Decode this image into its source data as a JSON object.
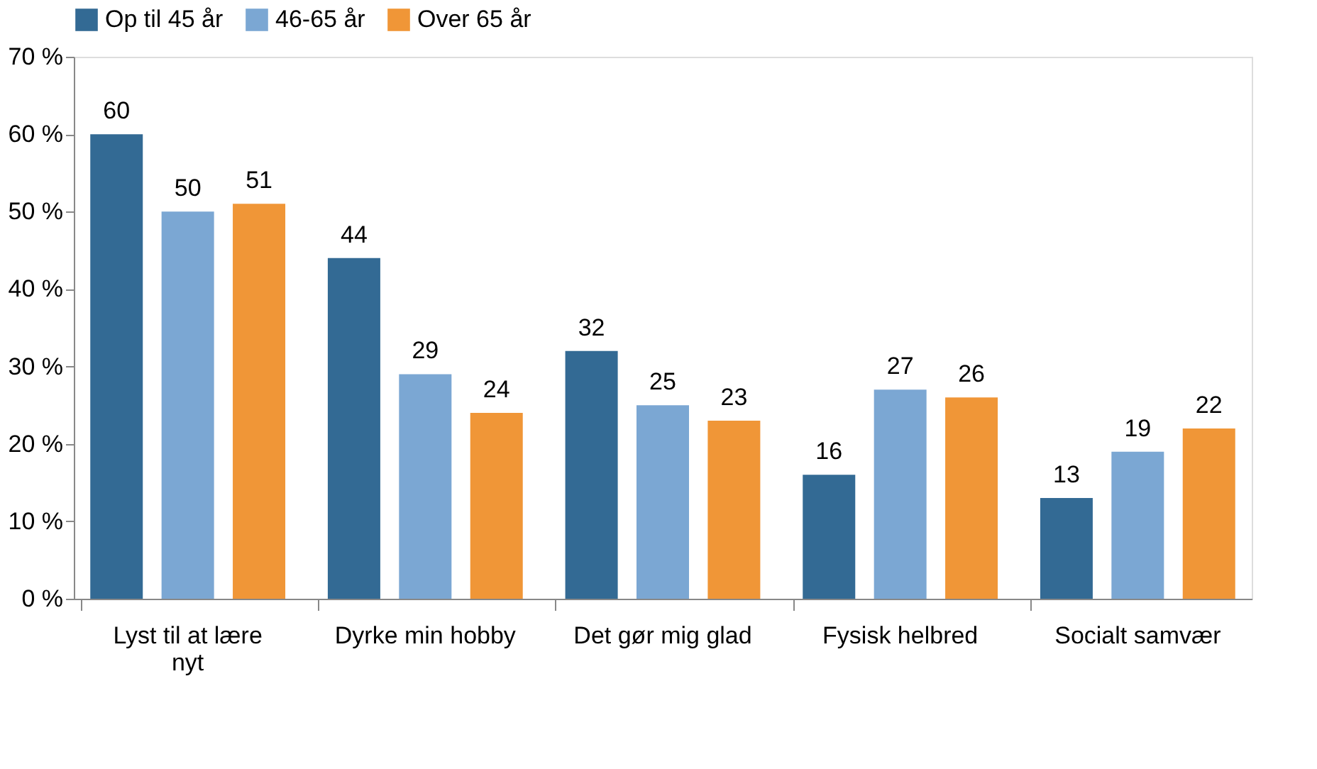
{
  "chart_data": {
    "type": "bar",
    "categories": [
      "Lyst til at lære nyt",
      "Dyrke min hobby",
      "Det gør mig glad",
      "Fysisk helbred",
      "Socialt samvær"
    ],
    "series": [
      {
        "name": "Op til 45 år",
        "color": "#336a94",
        "values": [
          60,
          44,
          32,
          16,
          13
        ]
      },
      {
        "name": "46-65 år",
        "color": "#7ba7d3",
        "values": [
          50,
          29,
          25,
          27,
          19
        ]
      },
      {
        "name": "Over 65 år",
        "color": "#f09637",
        "values": [
          51,
          24,
          23,
          26,
          22
        ]
      }
    ],
    "ylim": [
      0,
      70
    ],
    "yticks": [
      {
        "value": 0,
        "label": "0 %"
      },
      {
        "value": 10,
        "label": "10 %"
      },
      {
        "value": 20,
        "label": "20 %"
      },
      {
        "value": 30,
        "label": "30 %"
      },
      {
        "value": 40,
        "label": "40 %"
      },
      {
        "value": 50,
        "label": "50 %"
      },
      {
        "value": 60,
        "label": "60 %"
      },
      {
        "value": 70,
        "label": "70 %"
      }
    ],
    "data_labels": true,
    "legend": "top",
    "grid": false
  }
}
